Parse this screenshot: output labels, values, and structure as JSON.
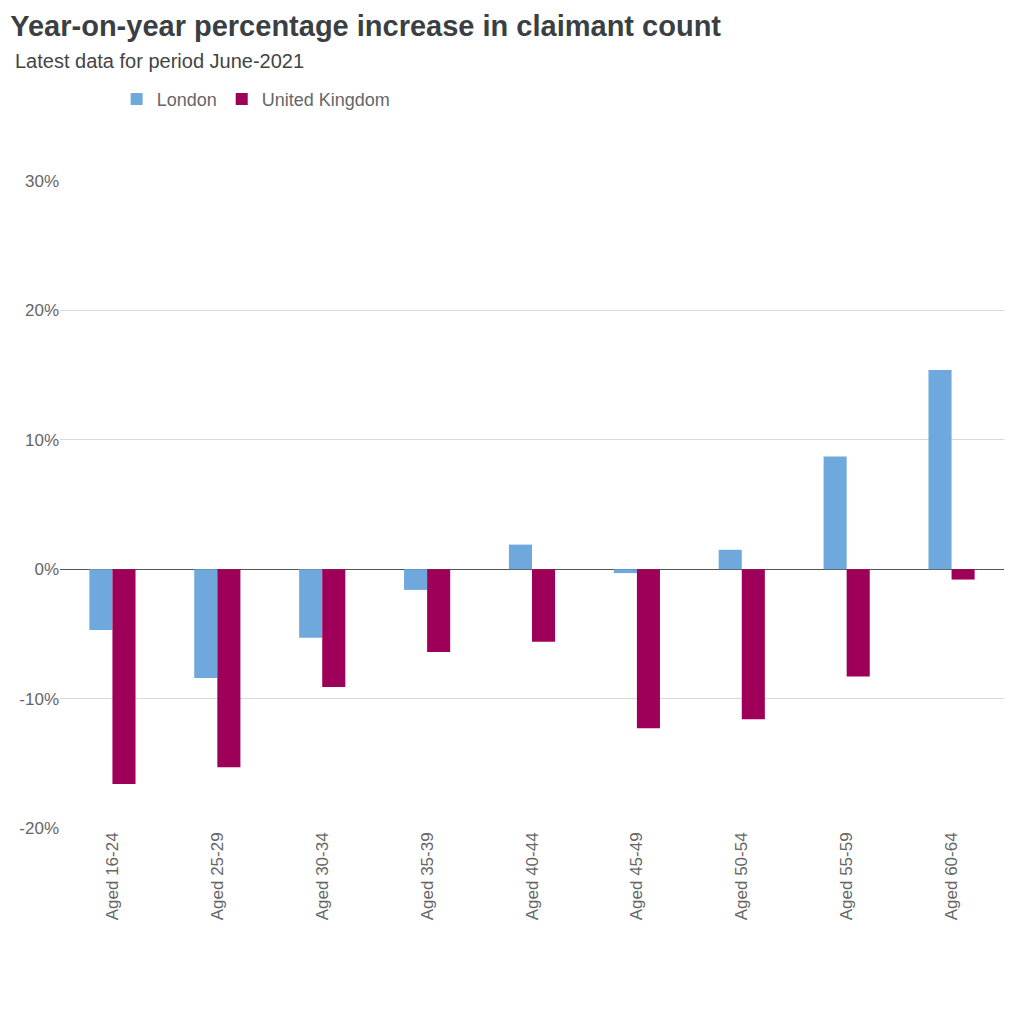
{
  "chart_data": {
    "type": "bar",
    "title": "Year-on-year percentage increase in claimant count",
    "subtitle": "Latest data for period June-2021",
    "categories": [
      "Aged 16-24",
      "Aged 25-29",
      "Aged 30-34",
      "Aged 35-39",
      "Aged 40-44",
      "Aged 45-49",
      "Aged 50-54",
      "Aged 55-59",
      "Aged 60-64"
    ],
    "series": [
      {
        "name": "London",
        "color": "#6fa8dc",
        "values": [
          -4.7,
          -8.4,
          -5.3,
          -1.6,
          1.9,
          -0.3,
          1.5,
          8.7,
          15.4
        ]
      },
      {
        "name": "United Kingdom",
        "color": "#9e0059",
        "values": [
          -16.6,
          -15.3,
          -9.1,
          -6.4,
          -5.6,
          -12.3,
          -11.6,
          -8.3,
          -0.8
        ]
      }
    ],
    "ylim": [
      -20,
      30
    ],
    "yticks": [
      {
        "value": -20,
        "label": "-20%"
      },
      {
        "value": -10,
        "label": "-10%"
      },
      {
        "value": 0,
        "label": "0%"
      },
      {
        "value": 10,
        "label": "10%"
      },
      {
        "value": 20,
        "label": "20%"
      },
      {
        "value": 30,
        "label": "30%"
      }
    ],
    "grid": true,
    "legend": "top-left"
  }
}
